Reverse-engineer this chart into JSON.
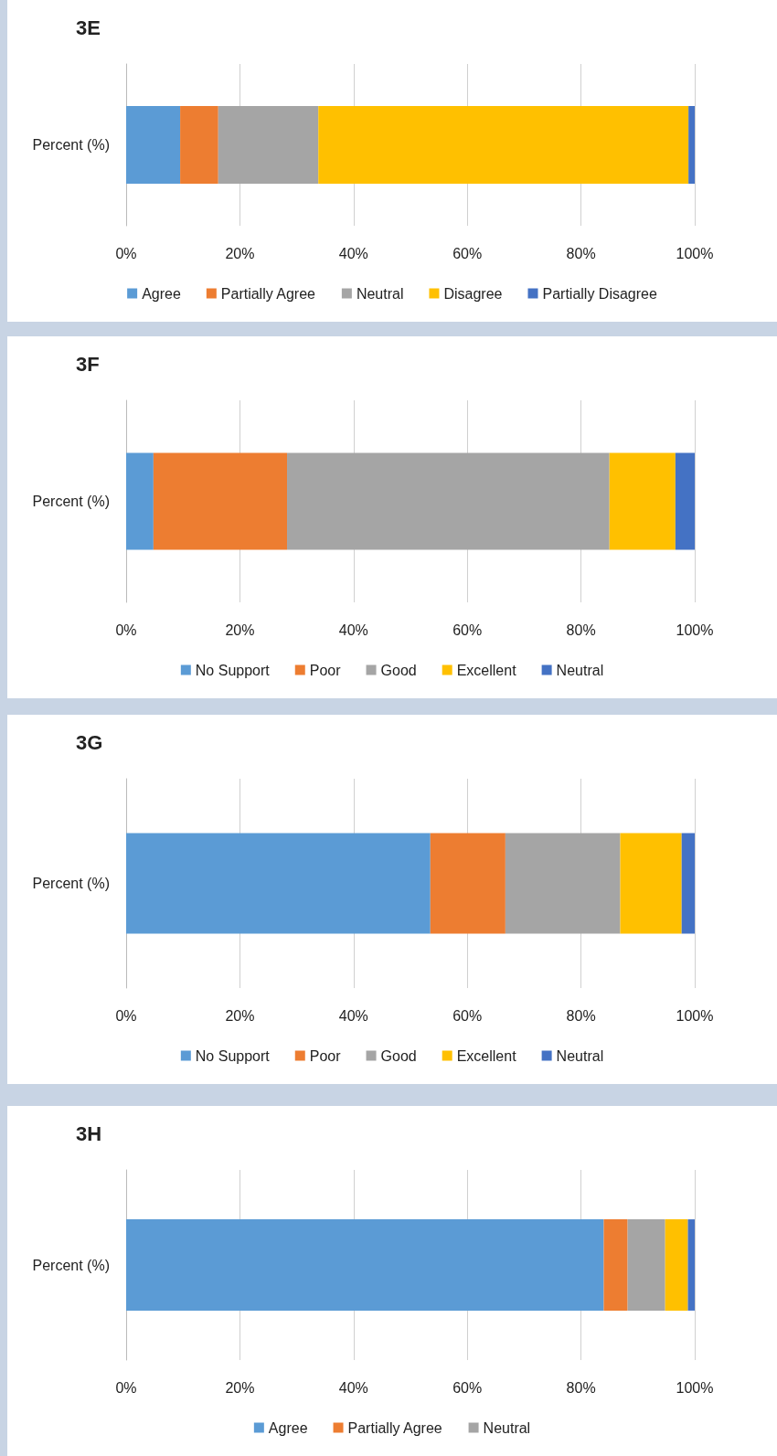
{
  "chart_data": [
    {
      "type": "bar",
      "title": "3E",
      "orientation": "horizontal",
      "stacked": true,
      "categories": [
        "Percent (%)"
      ],
      "xlim": [
        0,
        100
      ],
      "xticks": [
        {
          "value": 0,
          "label": "0%"
        },
        {
          "value": 20,
          "label": "20%"
        },
        {
          "value": 40,
          "label": "40%"
        },
        {
          "value": 60,
          "label": "60%"
        },
        {
          "value": 80,
          "label": "80%"
        },
        {
          "value": 100,
          "label": "100%"
        }
      ],
      "grid": "x",
      "legend": "bottom",
      "series": [
        {
          "name": "Agree",
          "color": "#5b9bd5",
          "values": [
            9.5
          ]
        },
        {
          "name": "Partially Agree",
          "color": "#ed7d31",
          "values": [
            6.7
          ]
        },
        {
          "name": "Neutral",
          "color": "#a5a5a5",
          "values": [
            17.6
          ]
        },
        {
          "name": "Disagree",
          "color": "#ffc000",
          "values": [
            65.1
          ]
        },
        {
          "name": "Partially Disagree",
          "color": "#4472c4",
          "values": [
            1.1
          ]
        }
      ]
    },
    {
      "type": "bar",
      "title": "3F",
      "orientation": "horizontal",
      "stacked": true,
      "categories": [
        "Percent (%)"
      ],
      "xlim": [
        0,
        100
      ],
      "xticks": [
        {
          "value": 0,
          "label": "0%"
        },
        {
          "value": 20,
          "label": "20%"
        },
        {
          "value": 40,
          "label": "40%"
        },
        {
          "value": 60,
          "label": "60%"
        },
        {
          "value": 80,
          "label": "80%"
        },
        {
          "value": 100,
          "label": "100%"
        }
      ],
      "grid": "x",
      "legend": "bottom",
      "series": [
        {
          "name": "No Support",
          "color": "#5b9bd5",
          "values": [
            4.8
          ]
        },
        {
          "name": "Poor",
          "color": "#ed7d31",
          "values": [
            23.5
          ]
        },
        {
          "name": "Good",
          "color": "#a5a5a5",
          "values": [
            56.7
          ]
        },
        {
          "name": "Excellent",
          "color": "#ffc000",
          "values": [
            11.6
          ]
        },
        {
          "name": "Neutral",
          "color": "#4472c4",
          "values": [
            3.4
          ]
        }
      ]
    },
    {
      "type": "bar",
      "title": "3G",
      "orientation": "horizontal",
      "stacked": true,
      "categories": [
        "Percent (%)"
      ],
      "xlim": [
        0,
        100
      ],
      "xticks": [
        {
          "value": 0,
          "label": "0%"
        },
        {
          "value": 20,
          "label": "20%"
        },
        {
          "value": 40,
          "label": "40%"
        },
        {
          "value": 60,
          "label": "60%"
        },
        {
          "value": 80,
          "label": "80%"
        },
        {
          "value": 100,
          "label": "100%"
        }
      ],
      "grid": "x",
      "legend": "bottom",
      "series": [
        {
          "name": "No Support",
          "color": "#5b9bd5",
          "values": [
            53.5
          ]
        },
        {
          "name": "Poor",
          "color": "#ed7d31",
          "values": [
            13.2
          ]
        },
        {
          "name": "Good",
          "color": "#a5a5a5",
          "values": [
            20.2
          ]
        },
        {
          "name": "Excellent",
          "color": "#ffc000",
          "values": [
            10.8
          ]
        },
        {
          "name": "Neutral",
          "color": "#4472c4",
          "values": [
            2.3
          ]
        }
      ]
    },
    {
      "type": "bar",
      "title": "3H",
      "orientation": "horizontal",
      "stacked": true,
      "categories": [
        "Percent (%)"
      ],
      "xlim": [
        0,
        100
      ],
      "xticks": [
        {
          "value": 0,
          "label": "0%"
        },
        {
          "value": 20,
          "label": "20%"
        },
        {
          "value": 40,
          "label": "40%"
        },
        {
          "value": 60,
          "label": "60%"
        },
        {
          "value": 80,
          "label": "80%"
        },
        {
          "value": 100,
          "label": "100%"
        }
      ],
      "grid": "x",
      "legend": "bottom",
      "series": [
        {
          "name": "Agree",
          "color": "#5b9bd5",
          "values": [
            84.0
          ]
        },
        {
          "name": "Partially Agree",
          "color": "#ed7d31",
          "values": [
            4.2
          ]
        },
        {
          "name": "Neutral",
          "color": "#a5a5a5",
          "values": [
            6.6
          ]
        },
        {
          "color": "#ffc000",
          "values": [
            4.0
          ]
        },
        {
          "color": "#4472c4",
          "values": [
            1.2
          ]
        }
      ]
    }
  ]
}
